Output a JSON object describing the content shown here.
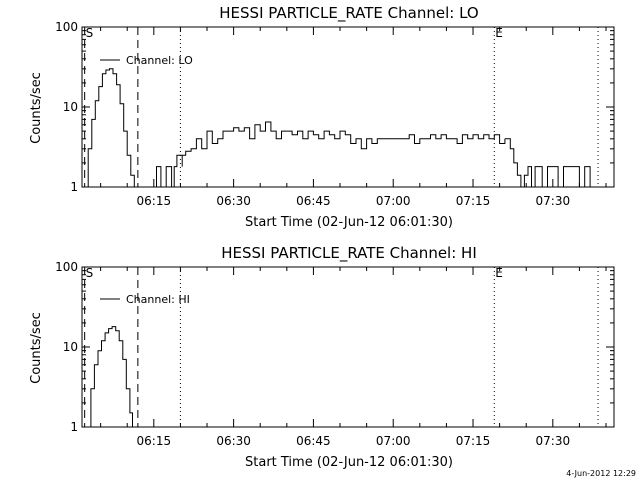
{
  "chart_data": [
    {
      "type": "line",
      "title": "HESSI PARTICLE_RATE Channel: LO",
      "xlabel": "Start Time (02-Jun-12 06:01:30)",
      "ylabel": "Counts/sec",
      "y_scale": "log",
      "ylim": [
        1,
        100
      ],
      "xlim": [
        "06:01:30",
        "07:41:30"
      ],
      "x_ticks": [
        "06:15",
        "06:30",
        "06:45",
        "07:00",
        "07:15",
        "07:30"
      ],
      "y_ticks": [
        "1",
        "10",
        "100"
      ],
      "legend": {
        "label": "Channel: LO",
        "position": "top-left"
      },
      "grid": false,
      "markers": [
        {
          "time": "06:02:00",
          "label": "S",
          "style": "dashed"
        },
        {
          "time": "06:12:00",
          "label": "",
          "style": "dashed"
        },
        {
          "time": "06:20:00",
          "label": "",
          "style": "dotted"
        },
        {
          "time": "07:19:00",
          "label": "E",
          "style": "dotted"
        },
        {
          "time": "07:38:30",
          "label": "",
          "style": "dotted"
        }
      ],
      "series": [
        {
          "name": "Channel: LO",
          "segments": [
            {
              "x": [
                "06:02:00",
                "06:02:40",
                "06:03:20",
                "06:04:00",
                "06:04:40",
                "06:05:20",
                "06:06:00",
                "06:06:40",
                "06:07:20",
                "06:08:00",
                "06:08:40",
                "06:09:20",
                "06:10:00",
                "06:10:40",
                "06:11:20"
              ],
              "y": [
                1,
                3,
                7,
                12,
                18,
                26,
                29,
                30,
                26,
                19,
                11,
                5,
                2.5,
                1.4,
                1
              ]
            },
            {
              "x": [
                "06:15:00",
                "06:15:30",
                "06:15:50",
                "06:16:20",
                "06:16:50",
                "06:17:20",
                "06:17:50",
                "06:18:20",
                "06:18:50",
                "06:19:20",
                "06:19:50",
                "06:20:20"
              ],
              "y": [
                1,
                1.8,
                1.8,
                1,
                1,
                1.8,
                1.8,
                1,
                1.8,
                2.5,
                2.5,
                1.8
              ]
            },
            {
              "x": [
                "06:20:20",
                "06:21:00",
                "06:22:00",
                "06:23:00",
                "06:24:00",
                "06:25:00",
                "06:26:00",
                "06:27:00",
                "06:28:00",
                "06:29:00",
                "06:30:00",
                "06:31:00",
                "06:32:00",
                "06:33:00",
                "06:34:00",
                "06:35:00",
                "06:36:00",
                "06:37:00",
                "06:38:00",
                "06:39:00",
                "06:40:00",
                "06:41:00",
                "06:42:00",
                "06:43:00",
                "06:44:00",
                "06:45:00",
                "06:46:00",
                "06:47:00",
                "06:48:00",
                "06:49:00",
                "06:50:00",
                "06:51:00",
                "06:52:00",
                "06:53:00",
                "06:54:00",
                "06:55:00",
                "06:56:00",
                "06:57:00",
                "06:58:00",
                "06:59:00",
                "07:00:00",
                "07:01:00",
                "07:02:00",
                "07:03:00",
                "07:04:00",
                "07:05:00",
                "07:06:00",
                "07:07:00",
                "07:08:00",
                "07:09:00",
                "07:10:00",
                "07:11:00",
                "07:12:00",
                "07:13:00",
                "07:14:00",
                "07:15:00",
                "07:16:00",
                "07:17:00",
                "07:18:00",
                "07:19:00",
                "07:20:00",
                "07:21:00"
              ],
              "y": [
                2.5,
                2.8,
                3,
                4,
                3,
                5,
                3.5,
                4,
                5,
                5,
                5.5,
                5,
                5.5,
                4,
                6,
                5,
                6.5,
                5,
                4,
                5,
                5,
                4.5,
                5,
                4,
                5,
                4.5,
                4,
                5,
                4.5,
                4,
                5,
                4.5,
                3.5,
                4,
                3,
                4,
                3.5,
                4,
                4,
                4,
                4,
                4,
                4,
                4.5,
                3.5,
                4,
                4,
                4.5,
                4,
                4.5,
                4,
                4,
                3.5,
                4.5,
                4,
                4.5,
                4,
                4.5,
                4,
                4.5,
                3.5,
                4
              ]
            },
            {
              "x": [
                "07:21:00",
                "07:22:00",
                "07:22:40",
                "07:23:20",
                "07:24:00",
                "07:24:40",
                "07:25:20",
                "07:26:00",
                "07:26:40",
                "07:27:20",
                "07:28:00",
                "07:29:00",
                "07:30:00",
                "07:31:00",
                "07:32:00",
                "07:33:00",
                "07:34:00",
                "07:35:00",
                "07:36:00",
                "07:37:00",
                "07:37:40"
              ],
              "y": [
                4,
                3,
                2,
                1.4,
                1,
                1.4,
                1.8,
                1,
                1.8,
                1.8,
                1,
                1.8,
                1.8,
                1,
                1.8,
                1.8,
                1.8,
                1,
                1.8,
                1,
                1
              ]
            }
          ]
        }
      ]
    },
    {
      "type": "line",
      "title": "HESSI PARTICLE_RATE Channel: HI",
      "xlabel": "Start Time (02-Jun-12 06:01:30)",
      "ylabel": "Counts/sec",
      "y_scale": "log",
      "ylim": [
        1,
        100
      ],
      "xlim": [
        "06:01:30",
        "07:41:30"
      ],
      "x_ticks": [
        "06:15",
        "06:30",
        "06:45",
        "07:00",
        "07:15",
        "07:30"
      ],
      "y_ticks": [
        "1",
        "10",
        "100"
      ],
      "legend": {
        "label": "Channel: HI",
        "position": "top-left"
      },
      "grid": false,
      "markers": [
        {
          "time": "06:02:00",
          "label": "S",
          "style": "dashed"
        },
        {
          "time": "06:12:00",
          "label": "",
          "style": "dashed"
        },
        {
          "time": "06:20:00",
          "label": "",
          "style": "dotted"
        },
        {
          "time": "07:19:00",
          "label": "E",
          "style": "dotted"
        },
        {
          "time": "07:38:30",
          "label": "",
          "style": "dotted"
        }
      ],
      "series": [
        {
          "name": "Channel: HI",
          "segments": [
            {
              "x": [
                "06:02:30",
                "06:03:10",
                "06:03:50",
                "06:04:30",
                "06:05:10",
                "06:05:50",
                "06:06:30",
                "06:07:10",
                "06:07:50",
                "06:08:30",
                "06:09:10",
                "06:09:50",
                "06:10:30",
                "06:11:00"
              ],
              "y": [
                1,
                3,
                6,
                9,
                12,
                15,
                17,
                18,
                16,
                12,
                7,
                3,
                1.5,
                1
              ]
            }
          ]
        }
      ]
    }
  ],
  "footer": {
    "timestamp": "4-Jun-2012 12:29"
  }
}
